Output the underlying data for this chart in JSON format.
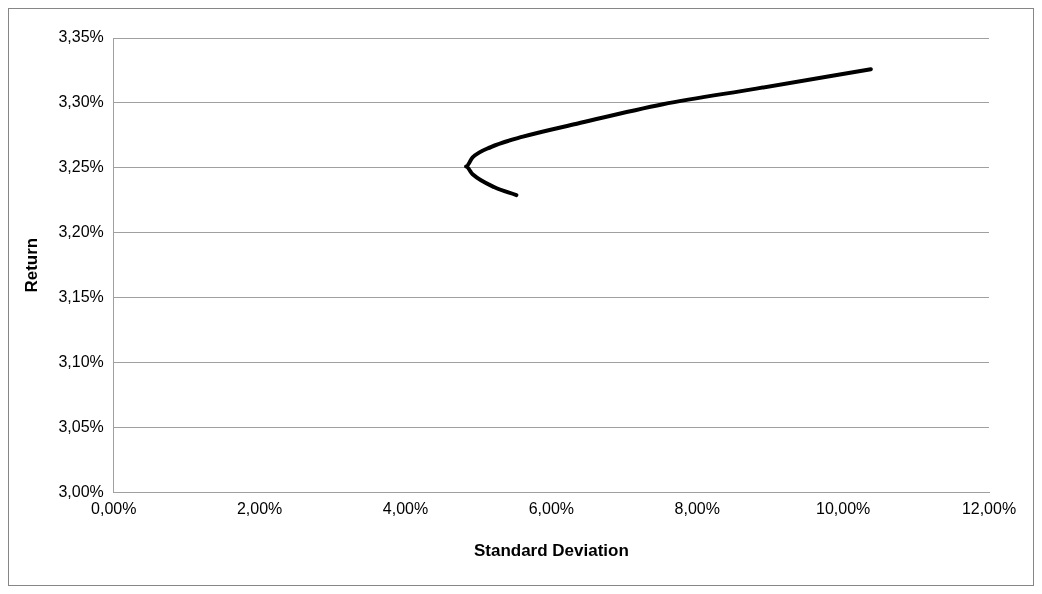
{
  "chart_data": {
    "type": "line",
    "xlabel": "Standard Deviation",
    "ylabel": "Return",
    "series": [
      {
        "color": "#000000",
        "x": [
          5.52,
          5.22,
          4.92,
          4.83,
          4.92,
          5.17,
          5.61,
          6.35,
          7.53,
          8.81,
          10.38
        ],
        "values": [
          3.229,
          3.235,
          3.245,
          3.251,
          3.258,
          3.266,
          3.274,
          3.284,
          3.299,
          3.311,
          3.326
        ]
      }
    ],
    "xlim": [
      0,
      12
    ],
    "xticks": [
      {
        "value": 0,
        "label": "0,00%"
      },
      {
        "value": 2,
        "label": "2,00%"
      },
      {
        "value": 4,
        "label": "4,00%"
      },
      {
        "value": 6,
        "label": "6,00%"
      },
      {
        "value": 8,
        "label": "8,00%"
      },
      {
        "value": 10,
        "label": "10,00%"
      },
      {
        "value": 12,
        "label": "12,00%"
      }
    ],
    "ylim": [
      3.0,
      3.35
    ],
    "yticks": [
      {
        "value": 3.0,
        "label": "3,00%"
      },
      {
        "value": 3.05,
        "label": "3,05%"
      },
      {
        "value": 3.1,
        "label": "3,10%"
      },
      {
        "value": 3.15,
        "label": "3,15%"
      },
      {
        "value": 3.2,
        "label": "3,20%"
      },
      {
        "value": 3.25,
        "label": "3,25%"
      },
      {
        "value": 3.3,
        "label": "3,30%"
      },
      {
        "value": 3.35,
        "label": "3,35%"
      }
    ],
    "grid": "y",
    "marker": "none",
    "line_style": "solid",
    "legend": false
  }
}
